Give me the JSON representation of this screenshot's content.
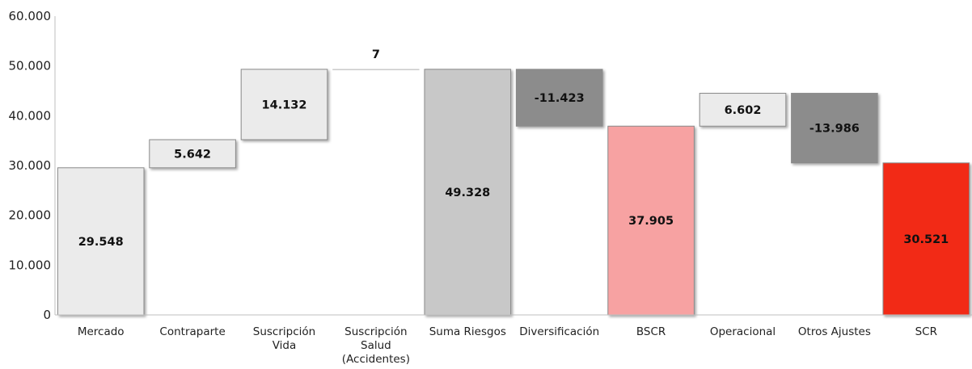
{
  "chart_data": {
    "type": "bar",
    "subtype": "waterfall",
    "title": "",
    "xlabel": "",
    "ylabel": "",
    "ylim": [
      0,
      60000
    ],
    "y_ticks": [
      "0",
      "10.000",
      "20.000",
      "30.000",
      "40.000",
      "50.000",
      "60.000"
    ],
    "categories": [
      [
        "Mercado"
      ],
      [
        "Contraparte"
      ],
      [
        "Suscripción",
        "Vida"
      ],
      [
        "Suscripción",
        "Salud",
        "(Accidentes)"
      ],
      [
        "Suma Riesgos"
      ],
      [
        "Diversificación"
      ],
      [
        "BSCR"
      ],
      [
        "Operacional"
      ],
      [
        "Otros Ajustes"
      ],
      [
        "SCR"
      ]
    ],
    "bars": [
      {
        "start": 0,
        "end": 29548,
        "label": "29.548",
        "color": "#ebebeb"
      },
      {
        "start": 29548,
        "end": 35190,
        "label": "5.642",
        "color": "#ebebeb"
      },
      {
        "start": 35190,
        "end": 49322,
        "label": "14.132",
        "color": "#ebebeb"
      },
      {
        "start": 49322,
        "end": 49329,
        "label": "7",
        "color": "#ebebeb"
      },
      {
        "start": 0,
        "end": 49328,
        "label": "49.328",
        "color": "#c8c8c8"
      },
      {
        "start": 49328,
        "end": 37905,
        "label": "-11.423",
        "color": "#8c8c8c"
      },
      {
        "start": 0,
        "end": 37905,
        "label": "37.905",
        "color": "#f7a2a2"
      },
      {
        "start": 37905,
        "end": 44507,
        "label": "6.602",
        "color": "#ebebeb"
      },
      {
        "start": 44507,
        "end": 30521,
        "label": "-13.986",
        "color": "#8c8c8c"
      },
      {
        "start": 0,
        "end": 30521,
        "label": "30.521",
        "color": "#f22b12"
      }
    ],
    "grid": false,
    "legend": "none"
  }
}
